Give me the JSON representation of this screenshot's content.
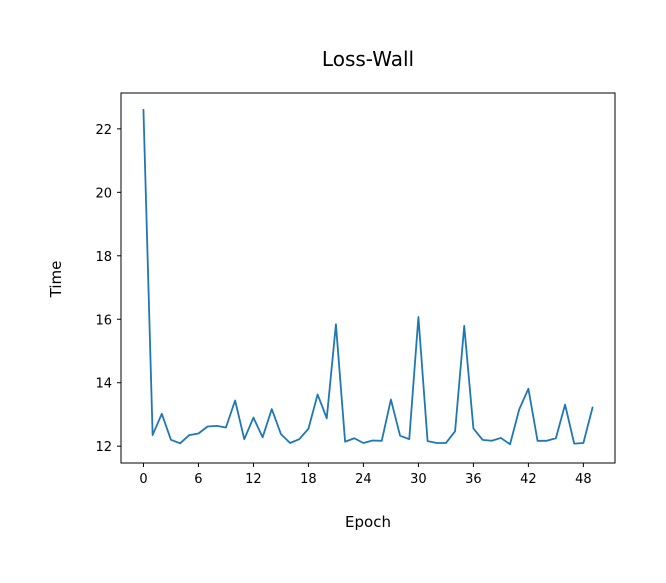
{
  "chart_data": {
    "type": "line",
    "title": "Loss-Wall",
    "xlabel": "Epoch",
    "ylabel": "Time",
    "xlim": [
      -2.45,
      51.45
    ],
    "ylim": [
      11.47,
      23.13
    ],
    "xticks": [
      0,
      6,
      12,
      18,
      24,
      30,
      36,
      42,
      48
    ],
    "yticks": [
      12,
      14,
      16,
      18,
      20,
      22
    ],
    "grid": false,
    "legend": false,
    "colors": {
      "line": "#1f77b4",
      "axes": "#000000",
      "background": "#ffffff"
    },
    "series": [
      {
        "x": [
          0,
          1,
          2,
          3,
          4,
          5,
          6,
          7,
          8,
          9,
          10,
          11,
          12,
          13,
          14,
          15,
          16,
          17,
          18,
          19,
          20,
          21,
          22,
          23,
          24,
          25,
          26,
          27,
          28,
          29,
          30,
          31,
          32,
          33,
          34,
          35,
          36,
          37,
          38,
          39,
          40,
          41,
          42,
          43,
          44,
          45,
          46,
          47,
          48,
          49
        ],
        "values": [
          22.6,
          12.35,
          13.02,
          12.2,
          12.09,
          12.35,
          12.4,
          12.62,
          12.64,
          12.59,
          13.44,
          12.22,
          12.9,
          12.28,
          13.17,
          12.38,
          12.1,
          12.22,
          12.55,
          13.63,
          12.88,
          15.84,
          12.14,
          12.25,
          12.1,
          12.18,
          12.17,
          13.47,
          12.33,
          12.22,
          16.07,
          12.16,
          12.1,
          12.1,
          12.47,
          15.79,
          12.56,
          12.2,
          12.17,
          12.26,
          12.06,
          13.16,
          13.81,
          12.17,
          12.17,
          12.25,
          13.31,
          12.08,
          12.1,
          13.22
        ]
      }
    ]
  }
}
